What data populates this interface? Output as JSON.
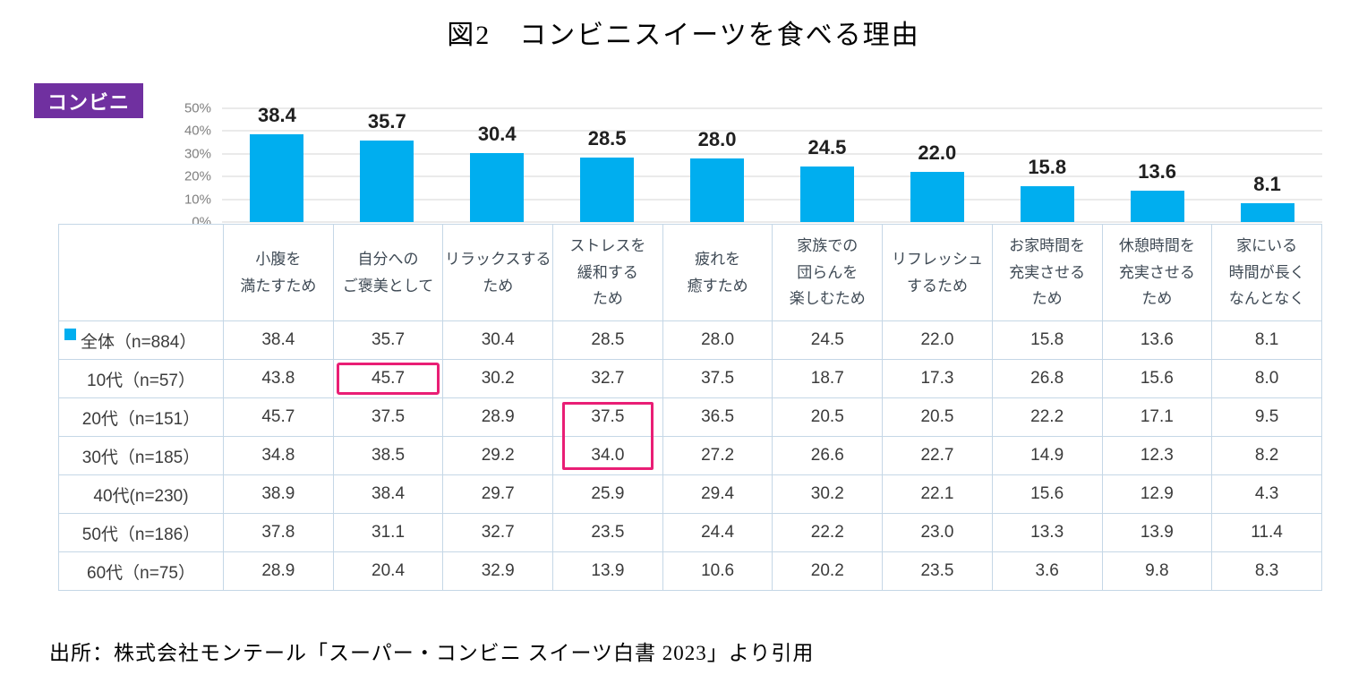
{
  "title": "図2　コンビニスイーツを食べる理由",
  "badge": {
    "label": "コンビニ",
    "color": "#7030A0"
  },
  "source": "出所：株式会社モンテール「スーパー・コンビニ スイーツ白書 2023」より引用",
  "chart_data": [
    {
      "type": "bar",
      "title": "図2　コンビニスイーツを食べる理由",
      "series_name": "全体（n=884）",
      "categories": [
        "小腹を満たすため",
        "自分へのご褒美として",
        "リラックスするため",
        "ストレスを緩和するため",
        "疲れを癒すため",
        "家族での団らんを楽しむため",
        "リフレッシュするため",
        "お家時間を充実させるため",
        "休憩時間を充実させるため",
        "家にいる時間が長くなんとなく"
      ],
      "categories_lines": [
        [
          "小腹を",
          "満たすため"
        ],
        [
          "自分への",
          "ご褒美として"
        ],
        [
          "リラックスする",
          "ため"
        ],
        [
          "ストレスを",
          "緩和する",
          "ため"
        ],
        [
          "疲れを",
          "癒すため"
        ],
        [
          "家族での",
          "団らんを",
          "楽しむため"
        ],
        [
          "リフレッシュ",
          "するため"
        ],
        [
          "お家時間を",
          "充実させる",
          "ため"
        ],
        [
          "休憩時間を",
          "充実させる",
          "ため"
        ],
        [
          "家にいる",
          "時間が長く",
          "なんとなく"
        ]
      ],
      "values": [
        38.4,
        35.7,
        30.4,
        28.5,
        28.0,
        24.5,
        22.0,
        15.8,
        13.6,
        8.1
      ],
      "value_labels": [
        "38.4",
        "35.7",
        "30.4",
        "28.5",
        "28.0",
        "24.5",
        "22.0",
        "15.8",
        "13.6",
        "8.1"
      ],
      "xlabel": "",
      "ylabel": "",
      "ylim": [
        0,
        50
      ],
      "yticks": [
        "50%",
        "40%",
        "30%",
        "20%",
        "10%",
        "0%"
      ],
      "grid": true,
      "bar_color": "#00AEEF"
    },
    {
      "type": "table",
      "columns": [
        "小腹を満たすため",
        "自分へのご褒美として",
        "リラックスするため",
        "ストレスを緩和するため",
        "疲れを癒すため",
        "家族での団らんを楽しむため",
        "リフレッシュするため",
        "お家時間を充実させるため",
        "休憩時間を充実させるため",
        "家にいる時間が長くなんとなく"
      ],
      "rows": [
        {
          "label": "全体（n=884）",
          "legend": true,
          "values": [
            "38.4",
            "35.7",
            "30.4",
            "28.5",
            "28.0",
            "24.5",
            "22.0",
            "15.8",
            "13.6",
            "8.1"
          ]
        },
        {
          "label": "10代（n=57）",
          "legend": false,
          "values": [
            "43.8",
            "45.7",
            "30.2",
            "32.7",
            "37.5",
            "18.7",
            "17.3",
            "26.8",
            "15.6",
            "8.0"
          ]
        },
        {
          "label": "20代（n=151）",
          "legend": false,
          "values": [
            "45.7",
            "37.5",
            "28.9",
            "37.5",
            "36.5",
            "20.5",
            "20.5",
            "22.2",
            "17.1",
            "9.5"
          ]
        },
        {
          "label": "30代（n=185）",
          "legend": false,
          "values": [
            "34.8",
            "38.5",
            "29.2",
            "34.0",
            "27.2",
            "26.6",
            "22.7",
            "14.9",
            "12.3",
            "8.2"
          ]
        },
        {
          "label": "40代(n=230)",
          "legend": false,
          "values": [
            "38.9",
            "38.4",
            "29.7",
            "25.9",
            "29.4",
            "30.2",
            "22.1",
            "15.6",
            "12.9",
            "4.3"
          ]
        },
        {
          "label": "50代（n=186）",
          "legend": false,
          "values": [
            "37.8",
            "31.1",
            "32.7",
            "23.5",
            "24.4",
            "22.2",
            "23.0",
            "13.3",
            "13.9",
            "11.4"
          ]
        },
        {
          "label": "60代（n=75）",
          "legend": false,
          "values": [
            "28.9",
            "20.4",
            "32.9",
            "13.9",
            "10.6",
            "20.2",
            "23.5",
            "3.6",
            "9.8",
            "8.3"
          ]
        }
      ],
      "highlights": [
        {
          "row_index": 1,
          "col_index": 1,
          "rowspan": 1
        },
        {
          "row_index": 2,
          "col_index": 3,
          "rowspan": 2
        }
      ],
      "highlight_color": "#E91E75"
    }
  ]
}
